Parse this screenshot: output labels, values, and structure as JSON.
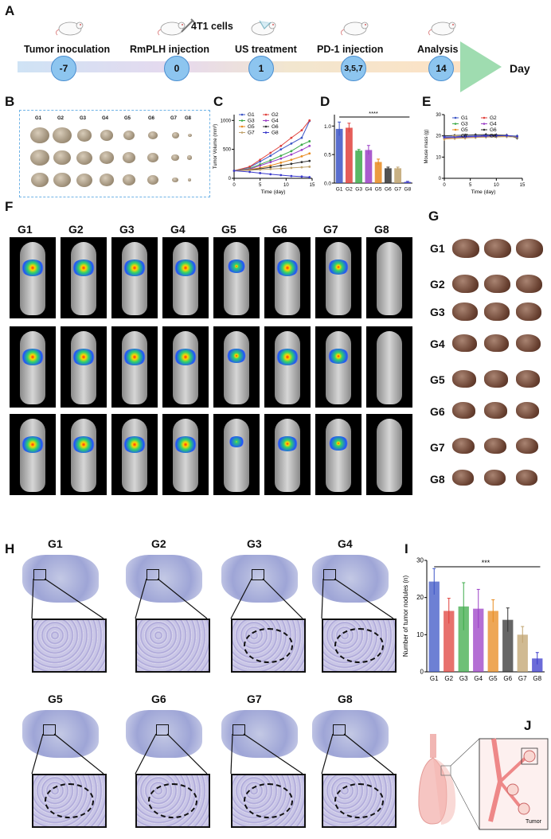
{
  "panels": {
    "A": "A",
    "B": "B",
    "C": "C",
    "D": "D",
    "E": "E",
    "F": "F",
    "G": "G",
    "H": "H",
    "I": "I",
    "J": "J"
  },
  "timeline": {
    "steps": [
      "Tumor inoculation",
      "RmPLH injection",
      "US treatment",
      "PD-1 injection",
      "Analysis"
    ],
    "cells_label": "4T1 cells",
    "days": [
      "-7",
      "0",
      "1",
      "3,5,7",
      "14"
    ],
    "axis_label": "Day"
  },
  "groups": [
    "G1",
    "G2",
    "G3",
    "G4",
    "G5",
    "G6",
    "G7",
    "G8"
  ],
  "colors": {
    "G1": "#3c55c6",
    "G2": "#e0413c",
    "G3": "#3dab4a",
    "G4": "#9b3fc6",
    "G5": "#e88a1e",
    "G6": "#333333",
    "G7": "#c0a36e",
    "G8": "#3a3acb",
    "arrow": "#9fdcb0",
    "timeline_start": "#cfe3f5",
    "timeline_end": "#fde2c4",
    "circle": "#8dc5ef"
  },
  "chart_data": [
    {
      "id": "C",
      "type": "line",
      "xlabel": "Time (day)",
      "ylabel": "Tumor Volume (mm³)",
      "xlim": [
        0,
        15
      ],
      "ylim": [
        0,
        1100
      ],
      "xticks": [
        "0",
        "5",
        "10",
        "15"
      ],
      "yticks": [
        "0",
        "500",
        "1000"
      ],
      "x": [
        0,
        3,
        5,
        7,
        9,
        11,
        13,
        14.5
      ],
      "series": [
        {
          "name": "G1",
          "values": [
            130,
            190,
            290,
            390,
            500,
            600,
            700,
            990
          ]
        },
        {
          "name": "G2",
          "values": [
            130,
            200,
            320,
            440,
            560,
            700,
            830,
            1000
          ]
        },
        {
          "name": "G3",
          "values": [
            130,
            170,
            240,
            310,
            390,
            470,
            580,
            640
          ]
        },
        {
          "name": "G4",
          "values": [
            130,
            160,
            220,
            280,
            340,
            410,
            490,
            560
          ]
        },
        {
          "name": "G5",
          "values": [
            130,
            150,
            180,
            220,
            270,
            320,
            380,
            430
          ]
        },
        {
          "name": "G6",
          "values": [
            130,
            145,
            165,
            190,
            220,
            250,
            280,
            300
          ]
        },
        {
          "name": "G7",
          "values": [
            130,
            140,
            150,
            160,
            170,
            180,
            190,
            200
          ]
        },
        {
          "name": "G8",
          "values": [
            130,
            110,
            90,
            70,
            55,
            40,
            30,
            20
          ]
        }
      ]
    },
    {
      "id": "D",
      "type": "bar",
      "categories": [
        "G1",
        "G2",
        "G3",
        "G4",
        "G5",
        "G6",
        "G7",
        "G8"
      ],
      "values": [
        0.95,
        0.97,
        0.57,
        0.58,
        0.37,
        0.26,
        0.26,
        0.02
      ],
      "errors": [
        0.12,
        0.08,
        0.02,
        0.08,
        0.05,
        0.02,
        0.02,
        0.01
      ],
      "ylim": [
        0,
        1.2
      ],
      "yticks": [
        "0.0",
        "0.5",
        "1.0"
      ],
      "significance": "****"
    },
    {
      "id": "E",
      "type": "line",
      "xlabel": "Time (day)",
      "ylabel": "Mouse mass (g)",
      "xlim": [
        0,
        15
      ],
      "ylim": [
        0,
        30
      ],
      "xticks": [
        "0",
        "5",
        "10",
        "15"
      ],
      "yticks": [
        "0",
        "10",
        "20",
        "30"
      ],
      "x": [
        0,
        2,
        4,
        6,
        8,
        10,
        12,
        14
      ],
      "series": [
        {
          "name": "G1",
          "values": [
            19.5,
            19.6,
            19.8,
            19.9,
            20.1,
            20.2,
            20.0,
            19.8
          ]
        },
        {
          "name": "G2",
          "values": [
            18.8,
            19.0,
            19.2,
            19.4,
            19.6,
            19.8,
            20.0,
            19.6
          ]
        },
        {
          "name": "G3",
          "values": [
            19.2,
            19.4,
            19.5,
            19.7,
            19.8,
            19.9,
            20.0,
            19.9
          ]
        },
        {
          "name": "G4",
          "values": [
            19.0,
            19.1,
            19.3,
            19.5,
            19.8,
            20.1,
            20.2,
            19.7
          ]
        },
        {
          "name": "G5",
          "values": [
            18.5,
            18.8,
            19.0,
            19.3,
            19.5,
            19.6,
            19.8,
            19.5
          ]
        },
        {
          "name": "G6",
          "values": [
            20.0,
            20.2,
            20.3,
            20.5,
            20.6,
            20.4,
            20.3,
            19.0
          ]
        },
        {
          "name": "G7",
          "values": [
            18.7,
            18.9,
            19.1,
            19.2,
            19.4,
            19.5,
            19.6,
            19.4
          ]
        },
        {
          "name": "G8",
          "values": [
            19.4,
            19.5,
            19.6,
            19.8,
            19.9,
            20.0,
            20.1,
            19.8
          ]
        }
      ]
    },
    {
      "id": "I",
      "type": "bar",
      "ylabel": "Number of tumor nodules (n)",
      "categories": [
        "G1",
        "G2",
        "G3",
        "G4",
        "G5",
        "G6",
        "G7",
        "G8"
      ],
      "values": [
        24.3,
        16.4,
        17.6,
        17.0,
        16.4,
        14.0,
        10.0,
        3.6
      ],
      "errors": [
        3.5,
        3.4,
        6.4,
        5.2,
        3.0,
        3.2,
        2.2,
        1.6
      ],
      "ylim": [
        0,
        30
      ],
      "yticks": [
        "0",
        "10",
        "20",
        "30"
      ],
      "significance": "***"
    }
  ],
  "histology_groups": [
    "G1",
    "G2",
    "G3",
    "G4",
    "G5",
    "G6",
    "G7",
    "G8"
  ],
  "schematic_label": "Tumor"
}
